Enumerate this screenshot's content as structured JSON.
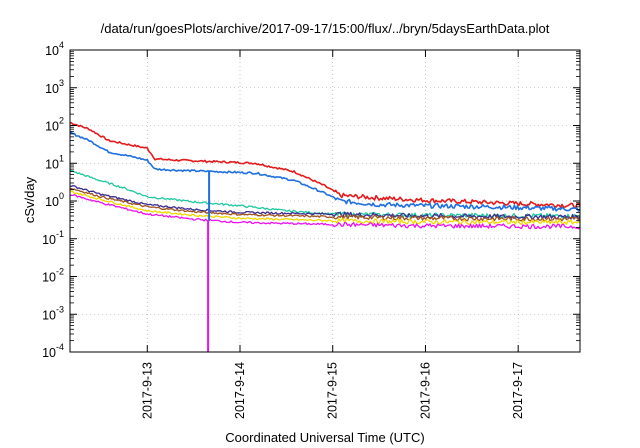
{
  "chart_data": {
    "type": "line",
    "title": "/data/run/goesPlots/archive/2017-09-17/15:00/flux/../bryn/5daysEarthData.plot",
    "xlabel": "Coordinated Universal Time (UTC)",
    "ylabel": "cSv/day",
    "x_scale": "time",
    "y_scale": "log",
    "xlim": [
      "2017-09-12T04:00",
      "2017-09-17T16:00"
    ],
    "ylim": [
      0.0001,
      10000
    ],
    "x_tick_labels": [
      "2017-9-13",
      "2017-9-14",
      "2017-9-15",
      "2017-9-16",
      "2017-9-17"
    ],
    "x_ticks": [
      "2017-09-13T00:00",
      "2017-09-14T00:00",
      "2017-09-15T00:00",
      "2017-09-16T00:00",
      "2017-09-17T00:00"
    ],
    "y_tick_labels": [
      {
        "value": 0.0001,
        "base": "10",
        "exp": "-4"
      },
      {
        "value": 0.001,
        "base": "10",
        "exp": "-3"
      },
      {
        "value": 0.01,
        "base": "10",
        "exp": "-2"
      },
      {
        "value": 0.1,
        "base": "10",
        "exp": "-1"
      },
      {
        "value": 1,
        "base": "10",
        "exp": "0"
      },
      {
        "value": 10,
        "base": "10",
        "exp": "1"
      },
      {
        "value": 100,
        "base": "10",
        "exp": "2"
      },
      {
        "value": 1000,
        "base": "10",
        "exp": "3"
      },
      {
        "value": 10000,
        "base": "10",
        "exp": "4"
      }
    ],
    "grid": true,
    "legend": "none",
    "series": [
      {
        "color": "#e41a1c",
        "x": [
          "2017-09-12T04:00",
          "2017-09-12T09:00",
          "2017-09-12T14:00",
          "2017-09-12T20:00",
          "2017-09-13T00:00",
          "2017-09-13T02:00",
          "2017-09-13T08:00",
          "2017-09-13T18:00",
          "2017-09-14T04:00",
          "2017-09-14T14:00",
          "2017-09-14T22:00",
          "2017-09-15T02:00",
          "2017-09-15T12:00",
          "2017-09-16T00:00",
          "2017-09-16T18:00",
          "2017-09-17T16:00"
        ],
        "y": [
          120,
          80,
          40,
          30,
          25,
          13,
          12,
          11,
          10,
          6,
          2.5,
          1.4,
          1.2,
          1.05,
          0.9,
          0.75
        ]
      },
      {
        "color": "#1f6fe0",
        "x": [
          "2017-09-12T04:00",
          "2017-09-12T09:00",
          "2017-09-12T14:00",
          "2017-09-12T20:00",
          "2017-09-13T00:00",
          "2017-09-13T02:00",
          "2017-09-13T08:00",
          "2017-09-13T18:00",
          "2017-09-14T04:00",
          "2017-09-14T14:00",
          "2017-09-14T22:00",
          "2017-09-15T02:00",
          "2017-09-15T12:00",
          "2017-09-16T00:00",
          "2017-09-16T18:00",
          "2017-09-17T16:00"
        ],
        "y": [
          65,
          40,
          20,
          15,
          12,
          7,
          6.5,
          6,
          5.5,
          3.5,
          1.6,
          1.0,
          0.8,
          0.75,
          0.7,
          0.6
        ]
      },
      {
        "color": "#1fc8a0",
        "x": [
          "2017-09-12T04:00",
          "2017-09-12T10:00",
          "2017-09-12T18:00",
          "2017-09-13T00:00",
          "2017-09-13T12:00",
          "2017-09-14T00:00",
          "2017-09-14T12:00",
          "2017-09-15T00:00",
          "2017-09-16T00:00",
          "2017-09-17T16:00"
        ],
        "y": [
          6.5,
          4,
          2.2,
          1.3,
          0.95,
          0.75,
          0.55,
          0.45,
          0.42,
          0.4
        ]
      },
      {
        "color": "#3b2b8f",
        "x": [
          "2017-09-12T04:00",
          "2017-09-12T12:00",
          "2017-09-13T00:00",
          "2017-09-13T12:00",
          "2017-09-14T00:00",
          "2017-09-15T00:00",
          "2017-09-16T00:00",
          "2017-09-17T16:00"
        ],
        "y": [
          2.6,
          1.5,
          0.8,
          0.6,
          0.5,
          0.45,
          0.4,
          0.38
        ]
      },
      {
        "color": "#a0521e",
        "x": [
          "2017-09-12T04:00",
          "2017-09-12T12:00",
          "2017-09-13T00:00",
          "2017-09-13T12:00",
          "2017-09-14T00:00",
          "2017-09-15T00:00",
          "2017-09-16T00:00",
          "2017-09-17T16:00"
        ],
        "y": [
          2.2,
          1.3,
          0.7,
          0.52,
          0.44,
          0.38,
          0.35,
          0.33
        ]
      },
      {
        "color": "#f2d600",
        "x": [
          "2017-09-12T04:00",
          "2017-09-12T12:00",
          "2017-09-13T00:00",
          "2017-09-13T12:00",
          "2017-09-14T00:00",
          "2017-09-15T00:00",
          "2017-09-16T00:00",
          "2017-09-17T16:00"
        ],
        "y": [
          1.8,
          1.1,
          0.55,
          0.42,
          0.35,
          0.3,
          0.28,
          0.27
        ]
      },
      {
        "color": "#ee10ee",
        "x": [
          "2017-09-12T04:00",
          "2017-09-12T12:00",
          "2017-09-13T00:00",
          "2017-09-13T12:00",
          "2017-09-14T00:00",
          "2017-09-15T00:00",
          "2017-09-16T00:00",
          "2017-09-17T16:00"
        ],
        "y": [
          1.5,
          0.9,
          0.45,
          0.33,
          0.27,
          0.24,
          0.22,
          0.21
        ]
      }
    ]
  }
}
